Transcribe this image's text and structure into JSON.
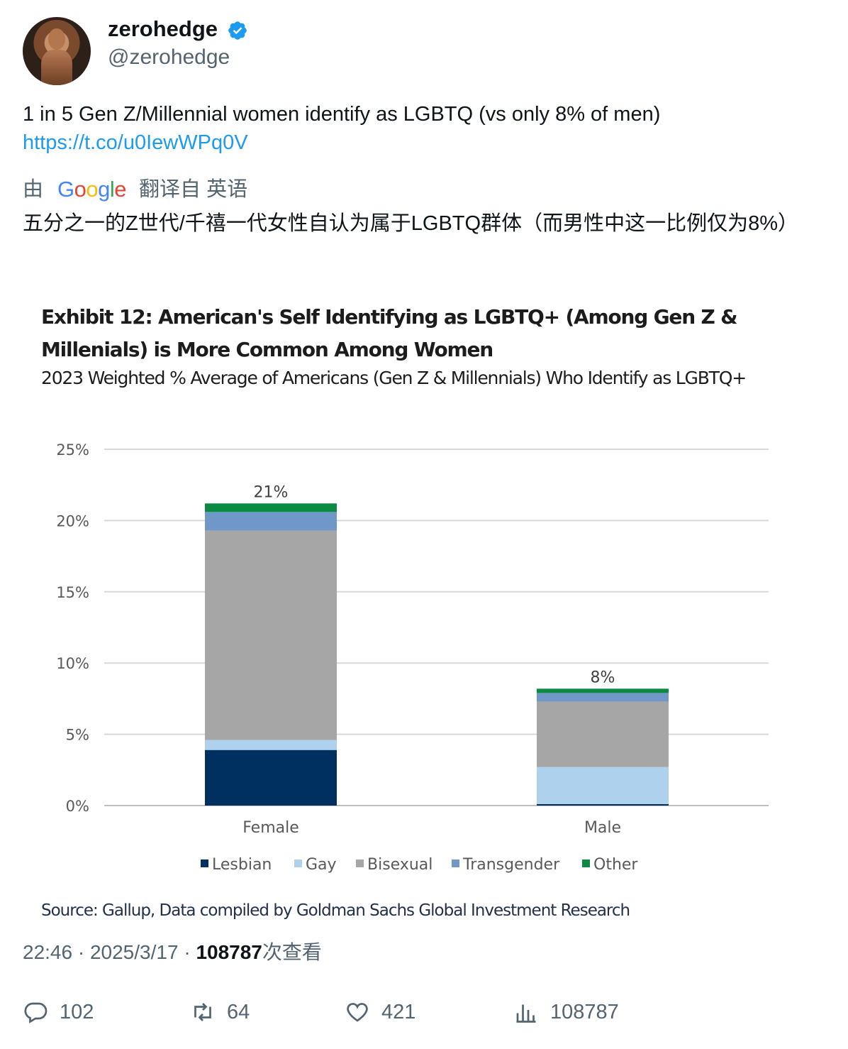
{
  "tweet": {
    "display_name": "zerohedge",
    "handle": "@zerohedge",
    "verified_icon": "verified-badge-icon",
    "text": "1 in 5 Gen Z/Millennial women identify as LGBTQ (vs only 8% of men)",
    "link": "https://t.co/u0IewWPq0V",
    "translation": {
      "prefix": "由",
      "provider": "Google",
      "suffix": "翻译自 英语",
      "text": "五分之一的Z世代/千禧一代女性自认为属于LGBTQ群体（而男性中这一比例仅为8%）"
    },
    "meta": {
      "time": "22:46",
      "separator": " · ",
      "date": "2025/3/17",
      "views": "108787",
      "views_label": "次查看"
    },
    "actions": {
      "replies": "102",
      "retweets": "64",
      "likes": "421",
      "views": "108787"
    }
  },
  "chart_data": {
    "type": "bar",
    "stacked": true,
    "title": "Exhibit 12: American's Self Identifying as LGBTQ+ (Among Gen Z & Millenials) is More Common Among Women",
    "subtitle": "2023 Weighted % Average of Americans (Gen Z & Millennials) Who Identify as LGBTQ+",
    "source": "Source: Gallup, Data compiled by Goldman Sachs Global Investment Research",
    "categories": [
      "Female",
      "Male"
    ],
    "totals_labels": [
      "21%",
      "8%"
    ],
    "ylim": [
      0,
      25
    ],
    "yticks": [
      "0%",
      "5%",
      "10%",
      "15%",
      "20%",
      "25%"
    ],
    "ytick_values": [
      0,
      5,
      10,
      15,
      20,
      25
    ],
    "grid": true,
    "legend_position": "bottom",
    "series": [
      {
        "name": "Lesbian",
        "color": "#003060",
        "values": [
          3.9,
          0.1
        ]
      },
      {
        "name": "Gay",
        "color": "#aed1ee",
        "values": [
          0.7,
          2.6
        ]
      },
      {
        "name": "Bisexual",
        "color": "#a6a6a6",
        "values": [
          14.7,
          4.6
        ]
      },
      {
        "name": "Transgender",
        "color": "#6f98c8",
        "values": [
          1.3,
          0.6
        ]
      },
      {
        "name": "Other",
        "color": "#0b8a43",
        "values": [
          0.6,
          0.3
        ]
      }
    ]
  }
}
